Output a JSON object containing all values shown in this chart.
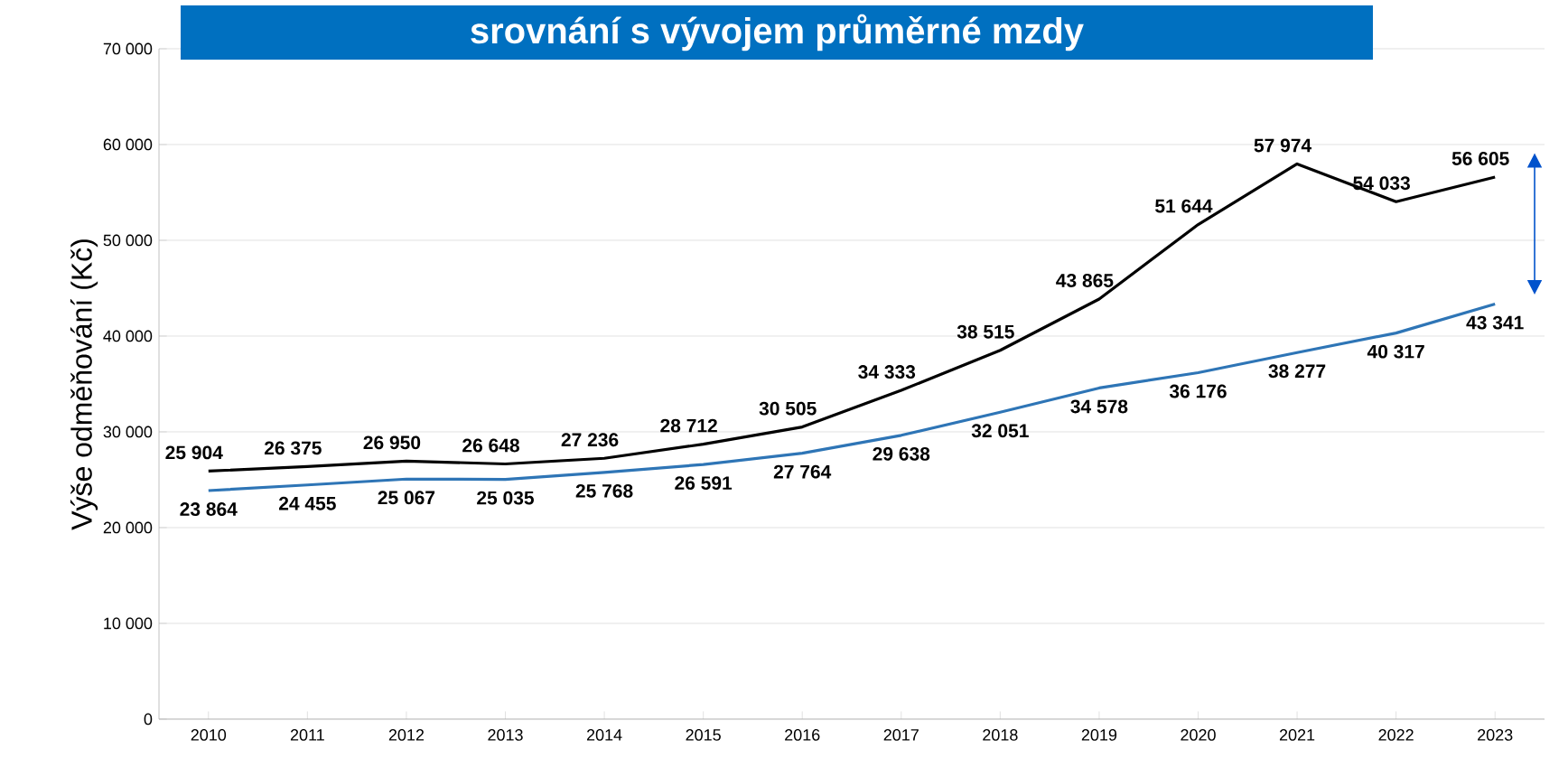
{
  "chart_data": {
    "type": "line",
    "title": "srovnání s vývojem průměrné mzdy",
    "ylabel": "Výše odměňování (Kč)",
    "categories": [
      "2010",
      "2011",
      "2012",
      "2013",
      "2014",
      "2015",
      "2016",
      "2017",
      "2018",
      "2019",
      "2020",
      "2021",
      "2022",
      "2023"
    ],
    "series": [
      {
        "color": "#000000",
        "values": [
          25904,
          26375,
          26950,
          26648,
          27236,
          28712,
          30505,
          34333,
          38515,
          43865,
          51644,
          57974,
          54033,
          56605
        ],
        "value_labels": [
          "25 904",
          "26 375",
          "26 950",
          "26 648",
          "27 236",
          "28 712",
          "30 505",
          "34 333",
          "38 515",
          "43 865",
          "51 644",
          "57 974",
          "54 033",
          "56 605"
        ]
      },
      {
        "color": "#2e75b6",
        "values": [
          23864,
          24455,
          25067,
          25035,
          25768,
          26591,
          27764,
          29638,
          32051,
          34578,
          36176,
          38277,
          40317,
          43341
        ],
        "value_labels": [
          "23 864",
          "24 455",
          "25 067",
          "25 035",
          "25 768",
          "26 591",
          "27 764",
          "29 638",
          "32 051",
          "34 578",
          "36 176",
          "38 277",
          "40 317",
          "43 341"
        ]
      }
    ],
    "ylim": [
      0,
      70000
    ],
    "yticks": [
      0,
      {
        "value": 10000,
        "label": "10 000"
      },
      {
        "value": 20000,
        "label": "20 000"
      },
      {
        "value": 30000,
        "label": "30 000"
      },
      {
        "value": 40000,
        "label": "40 000"
      },
      {
        "value": 50000,
        "label": "50 000"
      },
      {
        "value": 60000,
        "label": "60 000"
      },
      {
        "value": 70000,
        "label": "70 000"
      }
    ],
    "grid": "y",
    "marker": "none",
    "line_style": "solid"
  }
}
